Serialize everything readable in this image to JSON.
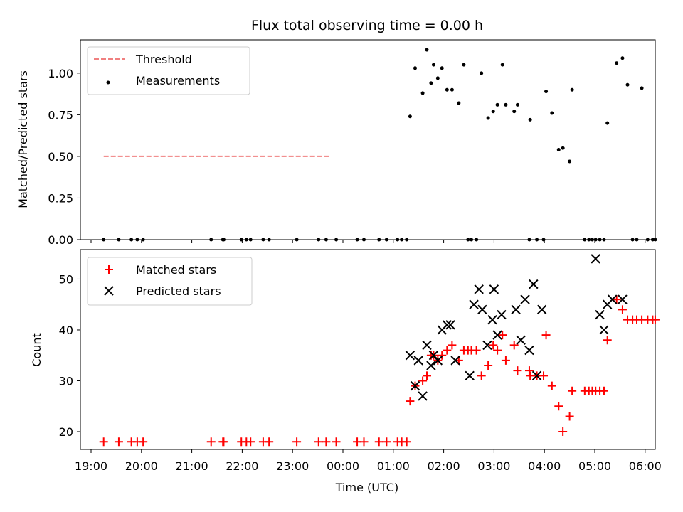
{
  "title": "Flux total observing time = 0.00 h",
  "xlabel": "Time (UTC)",
  "x_ticks": [
    "19:00",
    "20:00",
    "21:00",
    "22:00",
    "23:00",
    "00:00",
    "01:00",
    "02:00",
    "03:00",
    "04:00",
    "05:00",
    "06:00"
  ],
  "colors": {
    "threshold": "#f08080",
    "measurements": "#000000",
    "matched": "#ff0000",
    "predicted": "#000000"
  },
  "chart_data": [
    {
      "type": "scatter",
      "ylabel": "Matched/Predicted stars",
      "ylim": [
        0,
        1.2
      ],
      "y_ticks": [
        "0.00",
        "0.25",
        "0.50",
        "0.75",
        "1.00"
      ],
      "legend": "top-left",
      "threshold": {
        "name": "Threshold",
        "y": 0.5,
        "x_range": [
          "19:15",
          "23:45"
        ]
      },
      "series": [
        {
          "name": "Measurements",
          "x": [
            "19:15",
            "19:33",
            "19:48",
            "19:55",
            "20:02",
            "21:23",
            "21:37",
            "21:38",
            "21:59",
            "22:05",
            "22:10",
            "22:25",
            "22:32",
            "23:05",
            "23:31",
            "23:40",
            "23:52",
            "00:17",
            "00:25",
            "00:43",
            "00:52",
            "01:05",
            "01:10",
            "01:16",
            "01:20",
            "01:26",
            "01:35",
            "01:40",
            "01:45",
            "01:48",
            "01:53",
            "01:58",
            "02:04",
            "02:10",
            "02:18",
            "02:24",
            "02:29",
            "02:33",
            "02:39",
            "02:45",
            "02:53",
            "02:59",
            "03:04",
            "03:10",
            "03:14",
            "03:24",
            "03:28",
            "03:42",
            "03:43",
            "03:51",
            "03:59",
            "04:02",
            "04:09",
            "04:17",
            "04:22",
            "04:30",
            "04:33",
            "04:48",
            "04:53",
            "04:57",
            "05:01",
            "05:06",
            "05:11",
            "05:15",
            "05:26",
            "05:33",
            "05:39",
            "05:45",
            "05:50",
            "05:56",
            "06:03",
            "06:09",
            "06:12"
          ],
          "y": [
            0,
            0,
            0,
            0,
            0,
            0,
            0,
            0,
            0,
            0,
            0,
            0,
            0,
            0,
            0,
            0,
            0,
            0,
            0,
            0,
            0,
            0,
            0,
            0,
            0.74,
            1.03,
            0.88,
            1.14,
            0.94,
            1.05,
            0.97,
            1.03,
            0.9,
            0.9,
            0.82,
            1.05,
            0,
            0,
            0,
            1.0,
            0.73,
            0.77,
            0.81,
            1.05,
            0.81,
            0.77,
            0.81,
            0,
            0.72,
            0,
            0,
            0.89,
            0.76,
            0.54,
            0.55,
            0.47,
            0.9,
            0,
            0,
            0,
            0,
            0,
            0,
            0.7,
            1.06,
            1.09,
            0.93,
            0,
            0,
            0.91,
            0,
            0,
            0
          ]
        }
      ]
    },
    {
      "type": "scatter",
      "ylabel": "Count",
      "xlabel": "Time (UTC)",
      "ylim": [
        16.5,
        55.8
      ],
      "y_ticks": [
        "20",
        "30",
        "40",
        "50"
      ],
      "legend": "top-left",
      "series": [
        {
          "name": "Matched stars",
          "x": [
            "19:15",
            "19:33",
            "19:48",
            "19:55",
            "20:02",
            "21:23",
            "21:37",
            "21:38",
            "21:59",
            "22:05",
            "22:10",
            "22:25",
            "22:32",
            "23:05",
            "23:31",
            "23:40",
            "23:52",
            "00:17",
            "00:25",
            "00:43",
            "00:52",
            "01:05",
            "01:10",
            "01:16",
            "01:20",
            "01:26",
            "01:35",
            "01:40",
            "01:45",
            "01:48",
            "01:53",
            "01:58",
            "02:04",
            "02:10",
            "02:18",
            "02:24",
            "02:29",
            "02:33",
            "02:39",
            "02:45",
            "02:53",
            "02:59",
            "03:04",
            "03:10",
            "03:14",
            "03:24",
            "03:28",
            "03:42",
            "03:43",
            "03:51",
            "03:59",
            "04:02",
            "04:09",
            "04:17",
            "04:22",
            "04:30",
            "04:33",
            "04:48",
            "04:53",
            "04:57",
            "05:01",
            "05:06",
            "05:11",
            "05:15",
            "05:26",
            "05:33",
            "05:39",
            "05:45",
            "05:50",
            "05:56",
            "06:03",
            "06:09",
            "06:12"
          ],
          "y": [
            18,
            18,
            18,
            18,
            18,
            18,
            18,
            18,
            18,
            18,
            18,
            18,
            18,
            18,
            18,
            18,
            18,
            18,
            18,
            18,
            18,
            18,
            18,
            18,
            26,
            29,
            30,
            31,
            35,
            35,
            34,
            35,
            36,
            37,
            34,
            36,
            36,
            36,
            36,
            31,
            33,
            37,
            36,
            39,
            34,
            37,
            32,
            32,
            31,
            31,
            31,
            39,
            29,
            25,
            20,
            23,
            28,
            28,
            28,
            28,
            28,
            28,
            28,
            38,
            46,
            44,
            42,
            42,
            42,
            42,
            42,
            42,
            42
          ]
        },
        {
          "name": "Predicted stars",
          "x": [
            "01:20",
            "01:26",
            "01:30",
            "01:35",
            "01:40",
            "01:45",
            "01:48",
            "01:53",
            "01:58",
            "02:04",
            "02:08",
            "02:14",
            "02:31",
            "02:36",
            "02:42",
            "02:46",
            "02:52",
            "02:58",
            "03:00",
            "03:04",
            "03:09",
            "03:26",
            "03:32",
            "03:37",
            "03:42",
            "03:47",
            "03:51",
            "03:57",
            "05:01",
            "05:06",
            "05:11",
            "05:15",
            "05:21",
            "05:33"
          ],
          "y": [
            35,
            29,
            34,
            27,
            37,
            33,
            35,
            34,
            40,
            41,
            41,
            34,
            31,
            45,
            48,
            44,
            37,
            42,
            48,
            39,
            43,
            44,
            38,
            46,
            36,
            49,
            31,
            44,
            54,
            43,
            40,
            45,
            46,
            46
          ]
        }
      ]
    }
  ]
}
